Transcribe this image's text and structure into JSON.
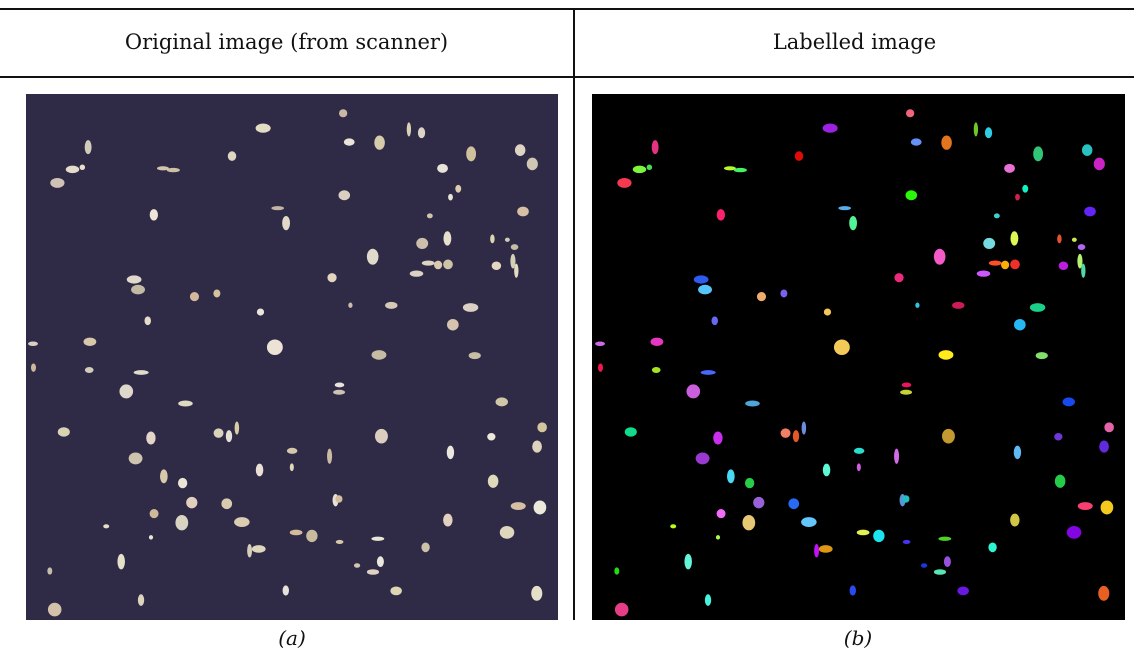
{
  "table": {
    "headers": [
      "Original image (from scanner)",
      "Labelled image"
    ]
  },
  "captions": [
    "(a)",
    "(b)"
  ]
}
